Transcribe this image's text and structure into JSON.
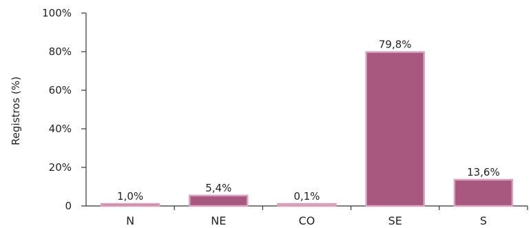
{
  "chart_data": {
    "type": "bar",
    "categories": [
      "N",
      "NE",
      "CO",
      "SE",
      "S"
    ],
    "values": [
      1.0,
      5.4,
      0.1,
      79.8,
      13.6
    ],
    "data_labels": [
      "1,0%",
      "5,4%",
      "0,1%",
      "79,8%",
      "13,6%"
    ],
    "title": "",
    "xlabel": "",
    "ylabel": "Registros (%)",
    "ylim": [
      0,
      100
    ],
    "yticks": [
      0,
      20,
      40,
      60,
      80,
      100
    ],
    "ytick_labels": [
      "0",
      "20%",
      "40%",
      "60%",
      "80%",
      "100%"
    ],
    "grid": false,
    "bar_color": "#a8577f",
    "bar_edge_color": "#d9a3bd",
    "highlight_bar_color": "#d49ab7"
  }
}
